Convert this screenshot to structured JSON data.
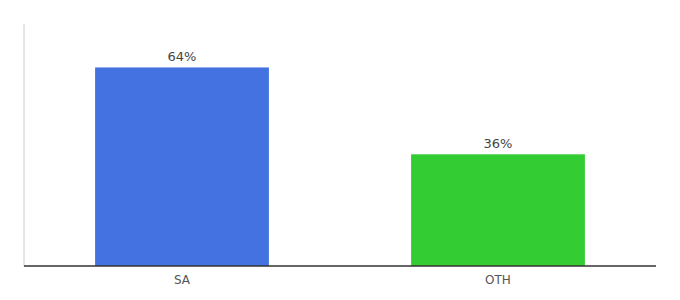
{
  "chart_data": {
    "type": "bar",
    "categories": [
      "SA",
      "OTH"
    ],
    "values": [
      64,
      36
    ],
    "colors": [
      "#4472e0",
      "#33cc33"
    ],
    "ylim": [
      0,
      78
    ],
    "yticks": [],
    "tick_labels": "x",
    "data_labels": true,
    "value_labels": [
      "64%",
      "36%"
    ]
  }
}
